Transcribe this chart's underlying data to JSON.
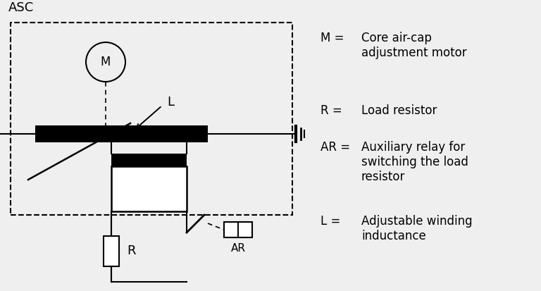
{
  "bg_color": "#efefef",
  "fg_color": "#000000",
  "title": "ASC",
  "legend_items": [
    {
      "sym": "M =",
      "text": "Core air-cap\nadjustment motor"
    },
    {
      "sym": "R =",
      "text": "Load resistor"
    },
    {
      "sym": "AR =",
      "text": "Auxiliary relay for\nswitching the load\nresistor"
    },
    {
      "sym": "L =",
      "text": "Adjustable winding\ninductance"
    }
  ]
}
